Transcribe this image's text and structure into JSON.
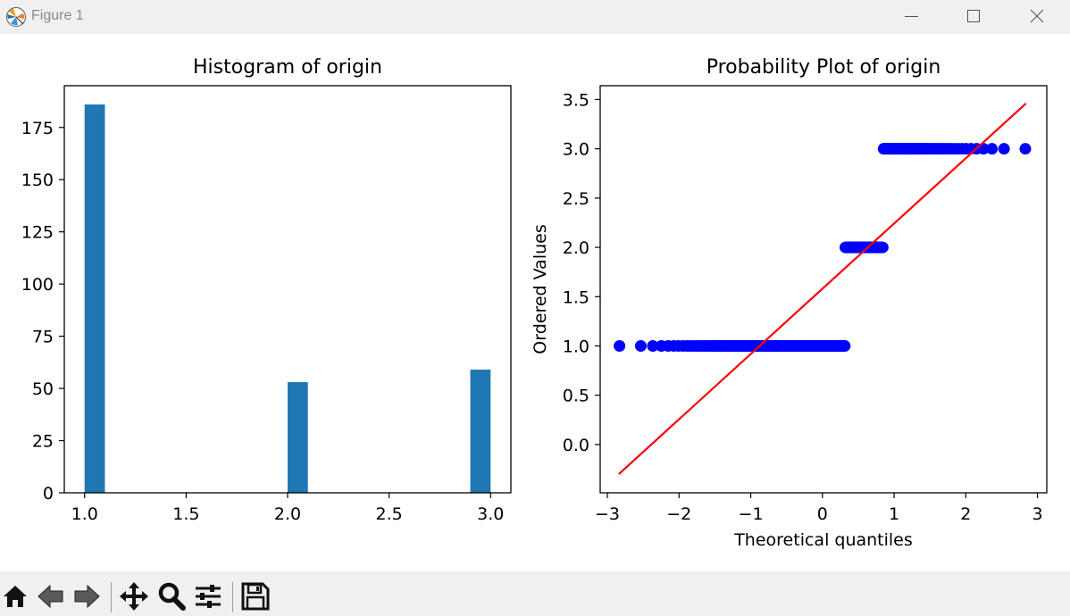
{
  "window": {
    "title": "Figure 1",
    "app_icon": "matplotlib-logo-icon",
    "controls": [
      "minimize-icon",
      "maximize-icon",
      "close-icon"
    ]
  },
  "toolbar": {
    "buttons": [
      "home-icon",
      "back-arrow-icon",
      "forward-arrow-icon",
      "pan-move-icon",
      "zoom-magnifier-icon",
      "configure-subplots-icon",
      "save-floppy-icon"
    ]
  },
  "chart_data": [
    {
      "type": "bar",
      "title": "Histogram of origin",
      "xlabel": "",
      "ylabel": "",
      "xlim": [
        0.9,
        3.1
      ],
      "ylim": [
        0,
        195
      ],
      "xticks": [
        1.0,
        1.5,
        2.0,
        2.5,
        3.0
      ],
      "xtick_labels": [
        "1.0",
        "1.5",
        "2.0",
        "2.5",
        "3.0"
      ],
      "yticks": [
        0,
        25,
        50,
        75,
        100,
        125,
        150,
        175
      ],
      "ytick_labels": [
        "0",
        "25",
        "50",
        "75",
        "100",
        "125",
        "150",
        "175"
      ],
      "bars": [
        {
          "x0": 1.0,
          "x1": 1.1,
          "value": 186
        },
        {
          "x0": 2.0,
          "x1": 2.1,
          "value": 53
        },
        {
          "x0": 2.9,
          "x1": 3.0,
          "value": 59
        }
      ],
      "color": "#1f77b4",
      "grid": false
    },
    {
      "type": "scatter",
      "title": "Probability Plot of origin",
      "xlabel": "Theoretical quantiles",
      "ylabel": "Ordered Values",
      "xlim": [
        -3.1,
        3.13
      ],
      "ylim": [
        -0.49,
        3.64
      ],
      "xticks": [
        -3,
        -2,
        -1,
        0,
        1,
        2,
        3
      ],
      "xtick_labels": [
        "−3",
        "−2",
        "−1",
        "0",
        "1",
        "2",
        "3"
      ],
      "yticks": [
        0.0,
        0.5,
        1.0,
        1.5,
        2.0,
        2.5,
        3.0,
        3.5
      ],
      "ytick_labels": [
        "0.0",
        "0.5",
        "1.0",
        "1.5",
        "2.0",
        "2.5",
        "3.0",
        "3.5"
      ],
      "marker_color": "#0000ff",
      "line_color": "#ff0000",
      "grid": false,
      "groups": [
        {
          "y": 1.0,
          "x_from": -2.84,
          "x_to": 0.35,
          "n": 186
        },
        {
          "y": 2.0,
          "x_from": 0.25,
          "x_to": 0.92,
          "n": 53
        },
        {
          "y": 3.0,
          "x_from": 0.84,
          "x_to": 2.84,
          "n": 59
        }
      ],
      "fit_line": {
        "x": [
          -2.84,
          2.84
        ],
        "y": [
          -0.3,
          3.46
        ]
      }
    }
  ]
}
